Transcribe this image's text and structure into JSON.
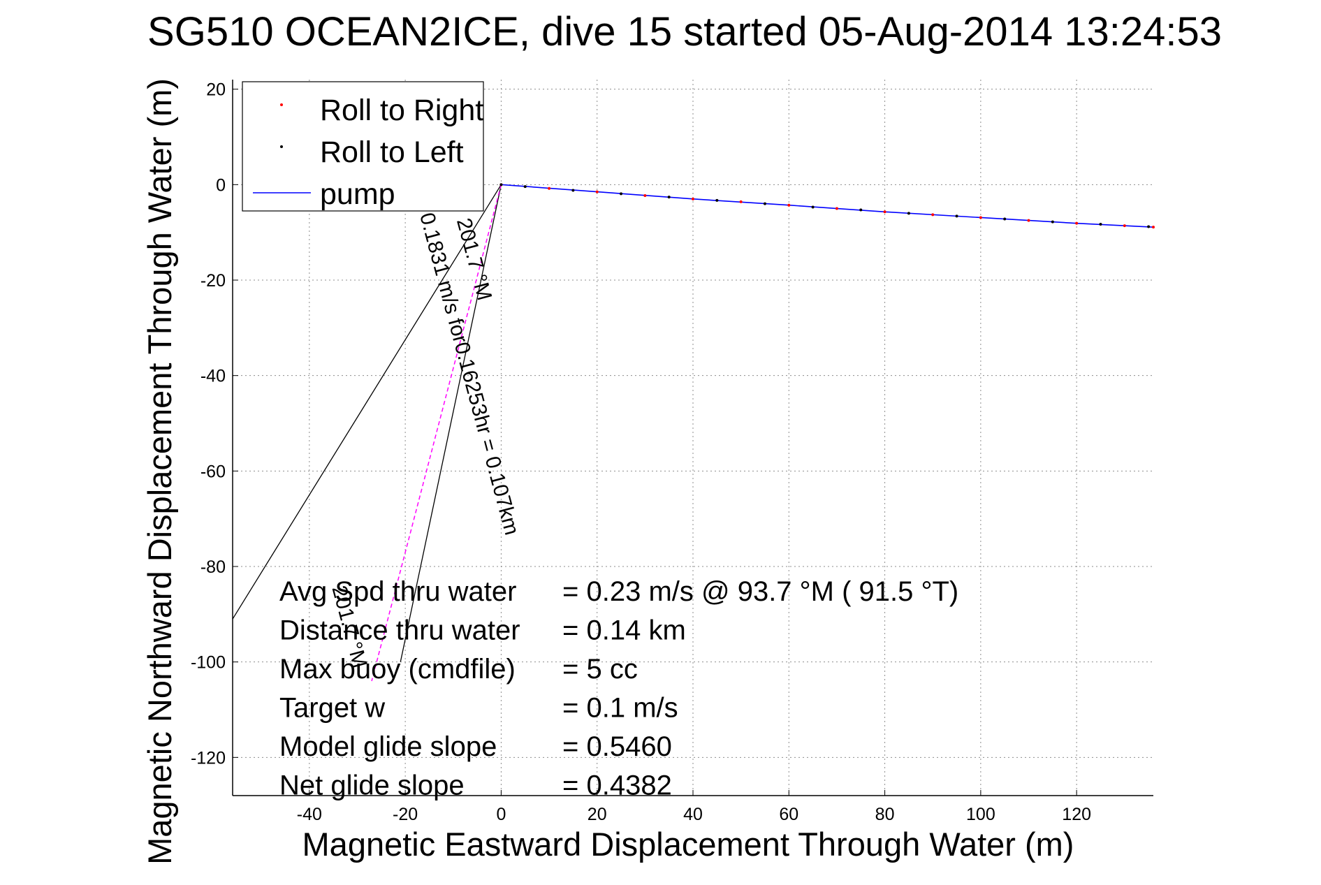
{
  "chart_data": {
    "type": "line",
    "title": "SG510 OCEAN2ICE, dive 15 started 05-Aug-2014 13:24:53",
    "xlabel": "Magnetic Eastward Displacement Through Water (m)",
    "ylabel": "Magnetic Northward Displacement Through Water (m)",
    "xlim": [
      -56,
      136
    ],
    "ylim": [
      -128,
      22
    ],
    "xticks": [
      -40,
      -20,
      0,
      20,
      40,
      60,
      80,
      100,
      120
    ],
    "yticks": [
      20,
      0,
      -20,
      -40,
      -60,
      -80,
      -100,
      -120
    ],
    "grid": true,
    "legend_placement": "top-left",
    "series": [
      {
        "name": "Roll to Right",
        "style": "dots",
        "color": "#ff0000",
        "x": [
          0,
          10,
          20,
          30,
          40,
          50,
          60,
          70,
          80,
          90,
          100,
          110,
          120,
          130,
          136
        ],
        "y": [
          0,
          -0.8,
          -1.5,
          -2.3,
          -3,
          -3.6,
          -4.3,
          -5,
          -5.7,
          -6.3,
          -6.9,
          -7.5,
          -8.1,
          -8.6,
          -8.9
        ]
      },
      {
        "name": "Roll to Left",
        "style": "dots",
        "color": "#000000",
        "x": [
          0,
          5,
          15,
          25,
          35,
          45,
          55,
          65,
          75,
          85,
          95,
          105,
          115,
          125,
          135
        ],
        "y": [
          0,
          -0.4,
          -1.2,
          -1.9,
          -2.6,
          -3.3,
          -4,
          -4.7,
          -5.3,
          -6,
          -6.6,
          -7.2,
          -7.8,
          -8.3,
          -8.8
        ]
      },
      {
        "name": "pump",
        "style": "line",
        "color": "#0000ff",
        "x": [
          0,
          20,
          40,
          60,
          80,
          100,
          120,
          136
        ],
        "y": [
          0,
          -1.5,
          -3,
          -4.3,
          -5.7,
          -6.9,
          -8.1,
          -8.9
        ]
      }
    ],
    "current_line": {
      "color": "#ff00ff",
      "x": [
        0,
        -27
      ],
      "y": [
        0,
        -104
      ]
    },
    "cone_lines": {
      "color": "#000000",
      "x": [
        [
          0,
          -56
        ],
        [
          0,
          -21
        ]
      ],
      "y": [
        [
          0,
          -91
        ],
        [
          0,
          -100
        ]
      ]
    },
    "annotations": [
      {
        "text": "0.1831 m/s for0.16253hr = 0.107km",
        "x": -8,
        "y": -40,
        "angle": 75
      },
      {
        "text": "201.7 °M",
        "x": -7,
        "y": -16,
        "angle": 75
      },
      {
        "text": "201.7 °M",
        "x": -33,
        "y": -93,
        "angle": 75
      }
    ],
    "stats": [
      {
        "label": "Avg Spd thru water",
        "value": "=  0.23 m/s @  93.7 °M ( 91.5 °T)"
      },
      {
        "label": "Distance thru water",
        "value": "=  0.14 km"
      },
      {
        "label": "Max buoy (cmdfile)",
        "value": "= 5 cc"
      },
      {
        "label": "Target w",
        "value": "= 0.1 m/s"
      },
      {
        "label": "Model glide slope",
        "value": "= 0.5460"
      },
      {
        "label": "Net glide slope",
        "value": "= 0.4382"
      }
    ]
  }
}
